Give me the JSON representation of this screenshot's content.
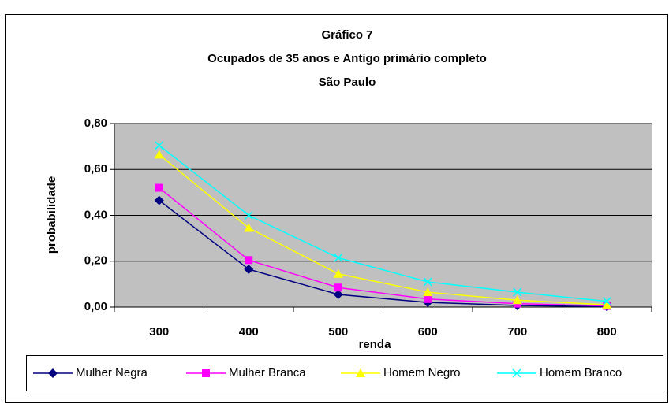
{
  "chart_data": {
    "type": "line",
    "title": "Gráfico 7",
    "subtitle": [
      "Ocupados de 35 anos e Antigo primário completo",
      "São Paulo"
    ],
    "x_label": "renda",
    "y_label": "probabilidade",
    "categories": [
      "300",
      "400",
      "500",
      "600",
      "700",
      "800"
    ],
    "series": [
      {
        "name": "Mulher Negra",
        "color": "#000080",
        "marker": "diamond",
        "values": [
          0.465,
          0.165,
          0.055,
          0.02,
          0.007,
          0.002
        ]
      },
      {
        "name": "Mulher Branca",
        "color": "#ff00ff",
        "marker": "square",
        "values": [
          0.52,
          0.205,
          0.085,
          0.035,
          0.015,
          0.005
        ]
      },
      {
        "name": "Homem Negro",
        "color": "#ffff00",
        "marker": "triangle",
        "values": [
          0.665,
          0.345,
          0.145,
          0.065,
          0.03,
          0.01
        ]
      },
      {
        "name": "Homem Branco",
        "color": "#00ffff",
        "marker": "x",
        "values": [
          0.705,
          0.4,
          0.215,
          0.11,
          0.065,
          0.025
        ]
      }
    ],
    "ylim": [
      0,
      0.8
    ],
    "yticks": [
      {
        "value": 0,
        "label": "0,00"
      },
      {
        "value": 0.2,
        "label": "0,20"
      },
      {
        "value": 0.4,
        "label": "0,40"
      },
      {
        "value": 0.6,
        "label": "0,60"
      },
      {
        "value": 0.8,
        "label": "0,80"
      }
    ],
    "grid": true,
    "plot_background": "#c0c0c0",
    "legend": "bottom"
  }
}
